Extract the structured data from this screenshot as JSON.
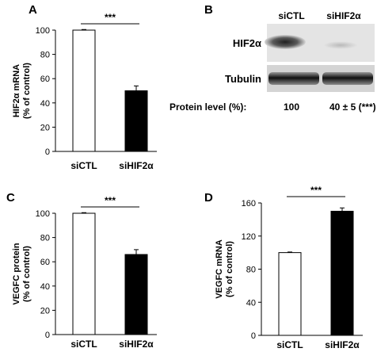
{
  "chart_data": [
    {
      "panel": "A",
      "type": "bar",
      "categories": [
        "siCTL",
        "siHIF2α"
      ],
      "values": [
        100,
        50
      ],
      "errors": [
        0.5,
        4
      ],
      "bar_colors": [
        "#ffffff",
        "#000000"
      ],
      "ylabel_lines": [
        "HIF2α mRNA",
        "(% of control)"
      ],
      "ylim": [
        0,
        100
      ],
      "yticks": [
        0,
        20,
        40,
        60,
        80,
        100
      ],
      "significance": "***"
    },
    {
      "panel": "C",
      "type": "bar",
      "categories": [
        "siCTL",
        "siHIF2α"
      ],
      "values": [
        100,
        66
      ],
      "errors": [
        0.5,
        4
      ],
      "bar_colors": [
        "#ffffff",
        "#000000"
      ],
      "ylabel_lines": [
        "VEGFC protein",
        "(% of control)"
      ],
      "ylim": [
        0,
        100
      ],
      "yticks": [
        0,
        20,
        40,
        60,
        80,
        100
      ],
      "significance": "***"
    },
    {
      "panel": "D",
      "type": "bar",
      "categories": [
        "siCTL",
        "siHIF2α"
      ],
      "values": [
        100,
        150
      ],
      "errors": [
        0.7,
        4
      ],
      "bar_colors": [
        "#ffffff",
        "#000000"
      ],
      "ylabel_lines": [
        "VEGFC mRNA",
        "(% of control)"
      ],
      "ylim": [
        0,
        160
      ],
      "yticks": [
        0,
        40,
        80,
        120,
        160
      ],
      "significance": "***"
    }
  ],
  "blot": {
    "panel": "B",
    "lanes": [
      "siCTL",
      "siHIF2α"
    ],
    "rows": [
      "HIF2α",
      "Tubulin"
    ],
    "protein_label": "Protein level (%):",
    "protein_values": [
      "100",
      "40 ± 5 (***)"
    ]
  }
}
